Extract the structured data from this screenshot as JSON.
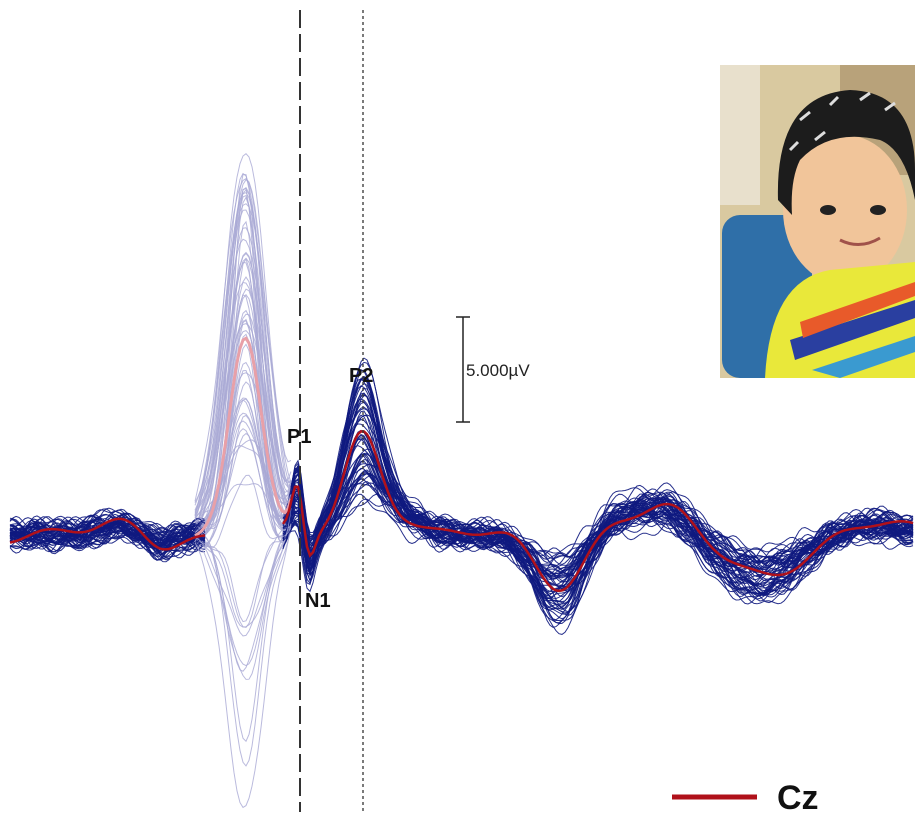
{
  "peaks": [
    {
      "label": "P1"
    },
    {
      "label": "N1"
    },
    {
      "label": "P2"
    }
  ],
  "scale_bar": {
    "label": "5.000µV"
  },
  "legend": {
    "label": "Cz"
  }
}
